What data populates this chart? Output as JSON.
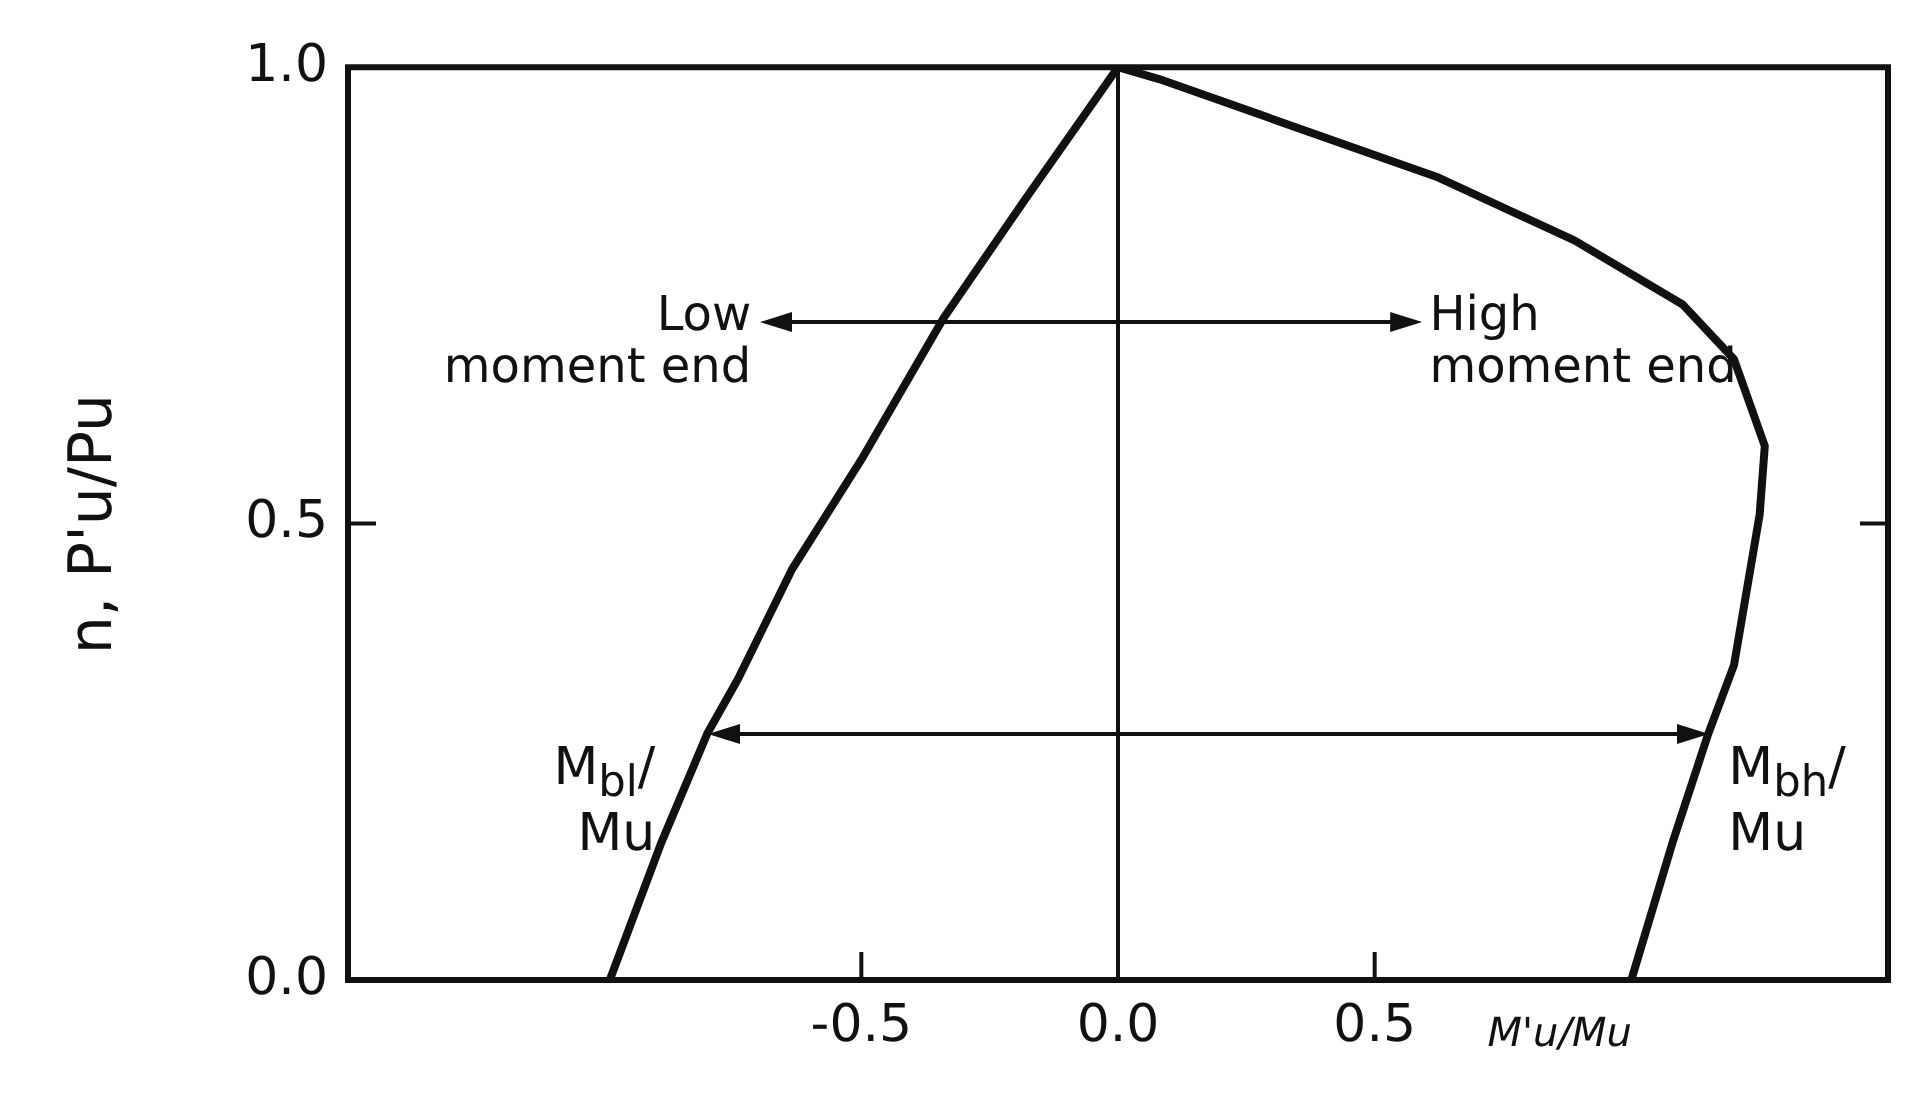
{
  "chart_data": {
    "type": "line",
    "ylabel": "n, P'u/Pu",
    "xlabel": "M'u/Mu",
    "series": [
      {
        "color": "#111111",
        "x": [
          -0.99,
          -0.89,
          -0.8,
          -0.74,
          -0.635,
          -0.5,
          -0.34,
          -0.18,
          0
        ],
        "values": [
          0,
          0.15,
          0.27,
          0.33,
          0.45,
          0.57,
          0.725,
          0.856,
          1
        ]
      },
      {
        "color": "#111111",
        "x": [
          0,
          0.08,
          0.62,
          0.89,
          1.1,
          1.2,
          1.26,
          1.25,
          1.2,
          1.15,
          1.08,
          1.0
        ],
        "values": [
          1,
          0.987,
          0.88,
          0.81,
          0.74,
          0.68,
          0.585,
          0.51,
          0.345,
          0.27,
          0.15,
          0
        ]
      }
    ],
    "xlim": [
      -1.5,
      1.5
    ],
    "xticks": [
      {
        "value": -0.5,
        "label": "-0.5"
      },
      {
        "value": 0,
        "label": "0.0"
      },
      {
        "value": 0.5,
        "label": "0.5"
      }
    ],
    "ylim": [
      0,
      1
    ],
    "yticks": [
      {
        "value": 0,
        "label": "0.0"
      },
      {
        "value": 0.5,
        "label": "0.5"
      },
      {
        "value": 1,
        "label": "1.0"
      }
    ],
    "ref_lines": [
      {
        "axis": "x",
        "value": 0,
        "color": "#111111"
      }
    ],
    "annotations": [
      "Low\nmoment end",
      "High\nmoment end",
      {
        "text": "M$_{bl}$/Mu",
        "x": -0.8,
        "y": 0.27
      },
      {
        "text": "M$_{bh}$/Mu",
        "x": 1.15,
        "y": 0.27
      }
    ],
    "grid": false,
    "legend": false,
    "marker": "none",
    "line_style": "solid"
  }
}
